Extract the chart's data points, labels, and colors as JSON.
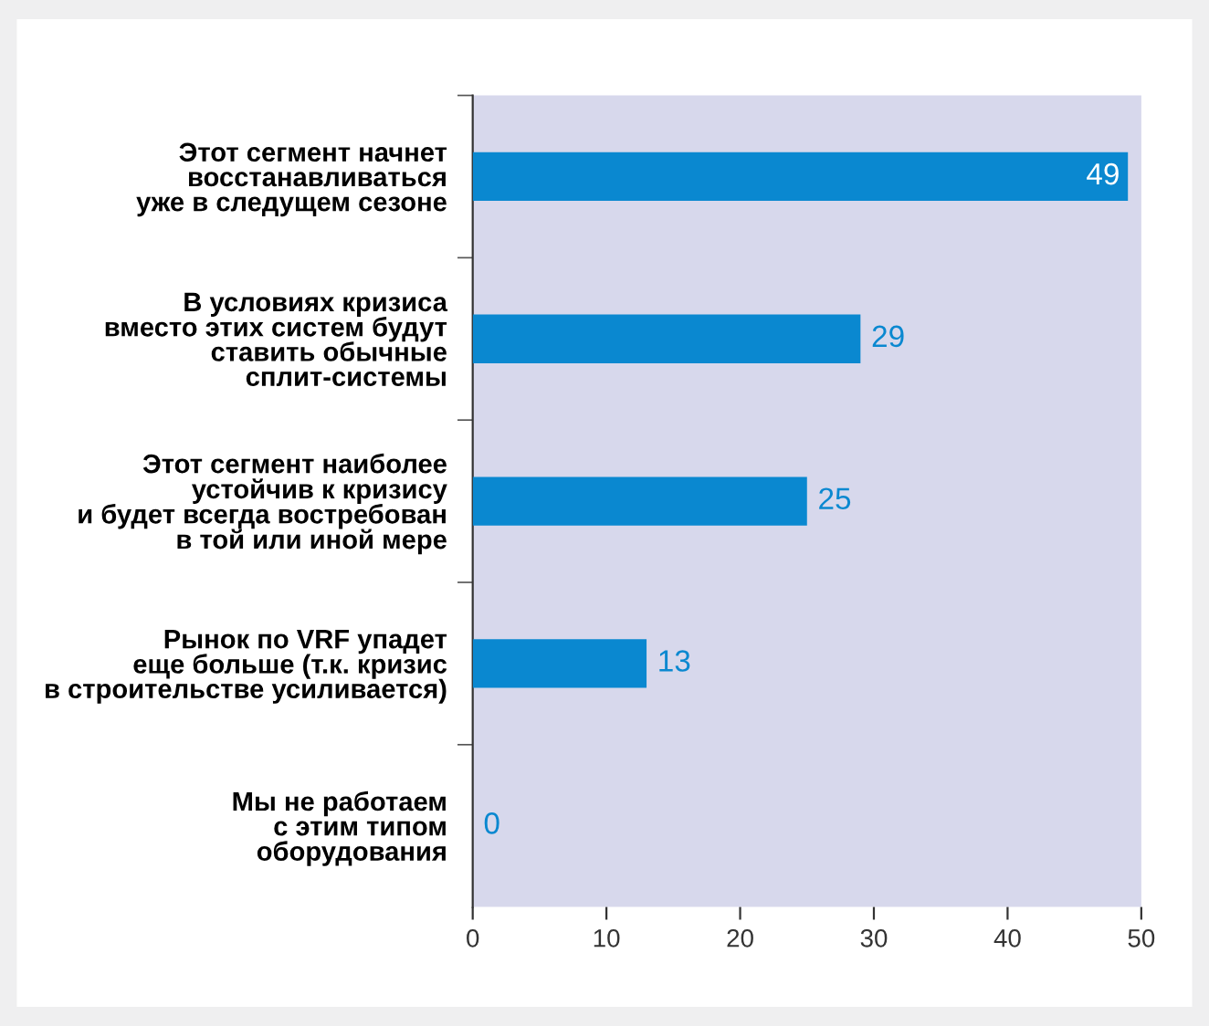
{
  "chart_data": {
    "type": "bar",
    "orientation": "horizontal",
    "categories": [
      "Этот сегмент начнет\nвосстанавливаться\nуже в следущем сезоне",
      "В условиях кризиса\nвместо этих систем будут\nставить обычные\nсплит-системы",
      "Этот сегмент наиболее\nустойчив к кризису\nи будет всегда востребован\nв той или иной мере",
      "Рынок по VRF упадет\nеще больше (т.к. кризис\nв строительстве усиливается)",
      "Мы не работаем\nс этим типом\nоборудования"
    ],
    "values": [
      49,
      29,
      25,
      13,
      0
    ],
    "color": "#0a88d0",
    "xlim": [
      0,
      50
    ],
    "xticks": [
      0,
      10,
      20,
      30,
      40,
      50
    ],
    "data_labels": true
  }
}
